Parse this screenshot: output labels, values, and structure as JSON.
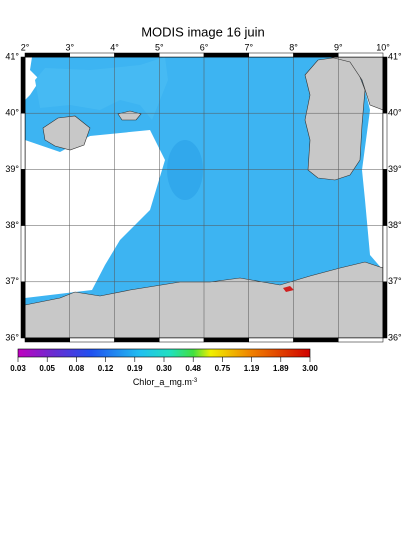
{
  "map": {
    "title": "MODIS image 16 juin",
    "lon_labels": [
      "2°",
      "3°",
      "4°",
      "5°",
      "6°",
      "7°",
      "8°",
      "9°",
      "10°"
    ],
    "lat_labels": [
      "41°",
      "40°",
      "39°",
      "38°",
      "37°",
      "36°"
    ],
    "colorbar": {
      "labels": [
        "0.03",
        "0.05",
        "0.08",
        "0.12",
        "0.19",
        "0.30",
        "0.48",
        "0.75",
        "1.19",
        "1.89",
        "3.00"
      ],
      "title": "Chlor_a_mg.m",
      "title_exponent": "-3"
    }
  }
}
